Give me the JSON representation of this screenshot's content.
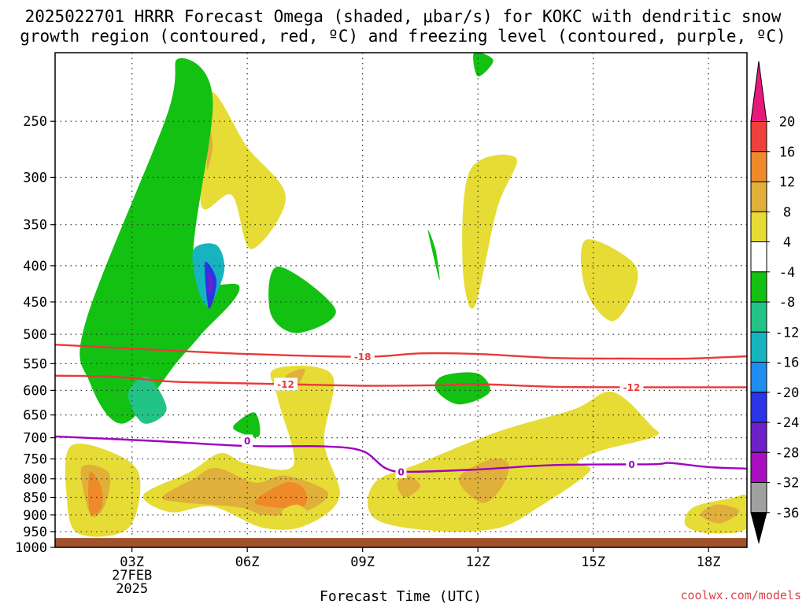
{
  "title_line1": "2025022701 HRRR Forecast Omega (shaded, μbar/s) for KOKC with dendritic snow",
  "title_line2": "growth region (contoured, red, ºC) and freezing level (contoured, purple, ºC)",
  "credit": "coolwx.com/models",
  "chart_data": {
    "type": "contour",
    "x_label": "Forecast Time (UTC)",
    "x_ticks": [
      "03Z",
      "06Z",
      "09Z",
      "12Z",
      "15Z",
      "18Z"
    ],
    "x_hours": [
      3,
      6,
      9,
      12,
      15,
      18
    ],
    "x_range_hours": [
      1,
      19
    ],
    "date_label": [
      "27FEB",
      "2025"
    ],
    "y_unit": "hPa",
    "y_ticks": [
      250,
      300,
      350,
      400,
      450,
      500,
      550,
      600,
      650,
      700,
      750,
      800,
      850,
      900,
      950,
      1000
    ],
    "y_range": [
      1000,
      200
    ],
    "colorbar": {
      "labels": [
        "20",
        "16",
        "12",
        "8",
        "4",
        "-4",
        "-8",
        "-12",
        "-16",
        "-20",
        "-24",
        "-28",
        "-32",
        "-36"
      ],
      "colors": [
        "#e8197d",
        "#f0403a",
        "#ee8a2a",
        "#e0b03a",
        "#e6dc35",
        "#ffffff",
        "#12c112",
        "#22c486",
        "#17b4c0",
        "#1f8ef0",
        "#2b34e6",
        "#6e20c8",
        "#a80fc0",
        "#a0a0a0",
        "#000000"
      ]
    },
    "contours": [
      {
        "label": "-18",
        "color": "#e83a3a",
        "points": [
          [
            1,
            517
          ],
          [
            4,
            527
          ],
          [
            6,
            533
          ],
          [
            9,
            538
          ],
          [
            10.5,
            532
          ],
          [
            12,
            533
          ],
          [
            14,
            540
          ],
          [
            16,
            541
          ],
          [
            17.5,
            541
          ],
          [
            19,
            537
          ]
        ]
      },
      {
        "label": "-12",
        "color": "#e83a3a",
        "points": [
          [
            1,
            572
          ],
          [
            2.5,
            574
          ],
          [
            4,
            583
          ],
          [
            5,
            585
          ],
          [
            7,
            588
          ],
          [
            9,
            591
          ],
          [
            11,
            590
          ],
          [
            12,
            588
          ],
          [
            14,
            593
          ],
          [
            16,
            594
          ],
          [
            19,
            594
          ]
        ]
      },
      {
        "label": "0",
        "color": "#a000c0",
        "points": [
          [
            1,
            697
          ],
          [
            3.5,
            707
          ],
          [
            6,
            719
          ],
          [
            8,
            720
          ],
          [
            9,
            731
          ],
          [
            9.6,
            773
          ],
          [
            10.2,
            782
          ],
          [
            12,
            776
          ],
          [
            14,
            765
          ],
          [
            16.5,
            763
          ],
          [
            17,
            760
          ],
          [
            18,
            770
          ],
          [
            19,
            774
          ]
        ]
      }
    ],
    "contour_label_positions": [
      [
        9,
        538
      ],
      [
        7,
        588
      ],
      [
        16,
        594
      ],
      [
        6,
        707
      ],
      [
        10,
        782
      ],
      [
        16,
        763
      ]
    ],
    "shaded_regions": [
      {
        "bin": "4 to 8",
        "color": "#e6dc35",
        "points": [
          [
            5,
            228
          ],
          [
            6,
            272
          ],
          [
            7,
            320
          ],
          [
            6.1,
            379
          ],
          [
            5.6,
            318
          ],
          [
            4.8,
            328
          ]
        ]
      },
      {
        "bin": "8 to 12",
        "color": "#e0b03a",
        "points": [
          [
            5,
            255
          ],
          [
            5.1,
            272
          ],
          [
            4.95,
            292
          ]
        ]
      },
      {
        "bin": "4 to 8",
        "color": "#e6dc35",
        "points": [
          [
            11.8,
            293
          ],
          [
            13,
            282
          ],
          [
            12.5,
            332
          ],
          [
            11.9,
            458
          ],
          [
            11.6,
            395
          ]
        ]
      },
      {
        "bin": "4 to 8",
        "color": "#e6dc35",
        "points": [
          [
            14.8,
            368
          ],
          [
            16,
            394
          ],
          [
            16.1,
            430
          ],
          [
            15.5,
            479
          ],
          [
            14.8,
            432
          ]
        ]
      },
      {
        "bin": "-4 to -8",
        "color": "#12c112",
        "points": [
          [
            3.9,
            246
          ],
          [
            4.2,
            204
          ],
          [
            5.1,
            232
          ],
          [
            4.6,
            402
          ],
          [
            5.8,
            429
          ],
          [
            4.8,
            500
          ],
          [
            4.2,
            545
          ],
          [
            2.8,
            668
          ],
          [
            1.9,
            584
          ],
          [
            1.8,
            479
          ]
        ]
      },
      {
        "bin": "-8 to -12",
        "color": "#22c486",
        "points": [
          [
            2.9,
            608
          ],
          [
            3.4,
            574
          ],
          [
            3.9,
            638
          ],
          [
            3.3,
            668
          ]
        ]
      },
      {
        "bin": "-4 to -8",
        "color": "#12c112",
        "points": [
          [
            6.8,
            401
          ],
          [
            8.3,
            462
          ],
          [
            7.3,
            498
          ],
          [
            6.6,
            466
          ]
        ]
      },
      {
        "bin": "-4 to -8",
        "color": "#12c112",
        "points": [
          [
            10.7,
            357
          ],
          [
            10.9,
            380
          ],
          [
            11.0,
            419
          ]
        ]
      },
      {
        "bin": "-4 to -8",
        "color": "#12c112",
        "points": [
          [
            11.1,
            572
          ],
          [
            12.0,
            568
          ],
          [
            12.3,
            604
          ],
          [
            11.5,
            628
          ],
          [
            10.9,
            598
          ]
        ]
      },
      {
        "bin": "-4 to -8",
        "color": "#12c112",
        "points": [
          [
            5.7,
            668
          ],
          [
            6.2,
            645
          ],
          [
            6.3,
            697
          ],
          [
            5.7,
            684
          ]
        ]
      },
      {
        "bin": "-12 to -16",
        "color": "#17b4c0",
        "points": [
          [
            4.6,
            380
          ],
          [
            5.2,
            374
          ],
          [
            5.4,
            407
          ],
          [
            5.0,
            455
          ],
          [
            4.7,
            428
          ]
        ]
      },
      {
        "bin": "-20 to -24",
        "color": "#2b34e6",
        "points": [
          [
            4.9,
            396
          ],
          [
            5.2,
            420
          ],
          [
            5.0,
            460
          ]
        ]
      },
      {
        "bin": "-24 to -28",
        "color": "#6e20c8",
        "points": [
          [
            5.0,
            407
          ],
          [
            5.1,
            424
          ],
          [
            5.0,
            440
          ]
        ]
      },
      {
        "bin": "4 to 8",
        "color": "#e6dc35",
        "points": [
          [
            1.4,
            720
          ],
          [
            2.5,
            735
          ],
          [
            3.2,
            793
          ],
          [
            2.9,
            940
          ],
          [
            1.6,
            956
          ],
          [
            1.3,
            845
          ]
        ]
      },
      {
        "bin": "8 to 12",
        "color": "#e0b03a",
        "points": [
          [
            1.7,
            769
          ],
          [
            2.4,
            785
          ],
          [
            2.3,
            870
          ],
          [
            2.0,
            906
          ],
          [
            1.8,
            860
          ]
        ]
      },
      {
        "bin": "12 to 16",
        "color": "#ee8a2a",
        "points": [
          [
            1.9,
            784
          ],
          [
            2.2,
            822
          ],
          [
            2.2,
            880
          ],
          [
            1.9,
            893
          ]
        ]
      },
      {
        "bin": "4 to 8",
        "color": "#e6dc35",
        "points": [
          [
            3.3,
            843
          ],
          [
            4.5,
            783
          ],
          [
            5.3,
            736
          ],
          [
            6.0,
            762
          ],
          [
            7.2,
            765
          ],
          [
            6.8,
            618
          ],
          [
            6.7,
            560
          ],
          [
            8.2,
            570
          ],
          [
            8.0,
            709
          ],
          [
            8.4,
            848
          ],
          [
            7.5,
            932
          ],
          [
            6.4,
            938
          ],
          [
            5.1,
            876
          ],
          [
            4.0,
            892
          ]
        ]
      },
      {
        "bin": "8 to 12",
        "color": "#e0b03a",
        "points": [
          [
            3.8,
            848
          ],
          [
            4.6,
            800
          ],
          [
            5.2,
            772
          ],
          [
            6.2,
            810
          ],
          [
            7.0,
            792
          ],
          [
            8.1,
            837
          ],
          [
            7.5,
            890
          ],
          [
            6.5,
            901
          ],
          [
            5.8,
            878
          ],
          [
            4.3,
            864
          ]
        ]
      },
      {
        "bin": "12 to 16",
        "color": "#ee8a2a",
        "points": [
          [
            6.2,
            866
          ],
          [
            7.0,
            810
          ],
          [
            7.5,
            830
          ],
          [
            7.4,
            878
          ]
        ]
      },
      {
        "bin": "8 to 12",
        "color": "#e0b03a",
        "points": [
          [
            7.0,
            573
          ],
          [
            7.5,
            560
          ],
          [
            7.2,
            600
          ]
        ]
      },
      {
        "bin": "4 to 8",
        "color": "#e6dc35",
        "points": [
          [
            9.3,
            812
          ],
          [
            10.5,
            760
          ],
          [
            12.5,
            687
          ],
          [
            14.5,
            638
          ],
          [
            15.5,
            603
          ],
          [
            16.5,
            672
          ],
          [
            16.6,
            697
          ],
          [
            15.2,
            730
          ],
          [
            14.6,
            757
          ],
          [
            14.9,
            782
          ],
          [
            13.6,
            876
          ],
          [
            12.5,
            940
          ],
          [
            10.8,
            947
          ],
          [
            9.3,
            909
          ]
        ]
      },
      {
        "bin": "8 to 12",
        "color": "#e0b03a",
        "points": [
          [
            11.5,
            800
          ],
          [
            12.3,
            752
          ],
          [
            12.8,
            762
          ],
          [
            12.6,
            825
          ],
          [
            12.1,
            865
          ]
        ]
      },
      {
        "bin": "8 to 12",
        "color": "#e0b03a",
        "points": [
          [
            9.9,
            812
          ],
          [
            10.2,
            792
          ],
          [
            10.5,
            820
          ],
          [
            10.1,
            850
          ]
        ]
      },
      {
        "bin": "4 to 8",
        "color": "#e6dc35",
        "points": [
          [
            17.6,
            878
          ],
          [
            18.6,
            852
          ],
          [
            19.0,
            848
          ],
          [
            19.0,
            940
          ],
          [
            18.0,
            955
          ],
          [
            17.4,
            930
          ]
        ]
      },
      {
        "bin": "8 to 12",
        "color": "#e0b03a",
        "points": [
          [
            17.8,
            900
          ],
          [
            18.2,
            870
          ],
          [
            18.8,
            888
          ],
          [
            18.3,
            925
          ]
        ]
      },
      {
        "bin": "4 to 8",
        "color": "#e6dc35",
        "points": [
          [
            6.9,
            890
          ],
          [
            7.3,
            870
          ],
          [
            7.6,
            900
          ],
          [
            7.2,
            920
          ]
        ]
      },
      {
        "bin": "-4 to -8",
        "color": "#12c112",
        "points": [
          [
            11.9,
            200
          ],
          [
            12.4,
            205
          ],
          [
            12.0,
            216
          ]
        ]
      }
    ],
    "terrain": {
      "color": "#a0522d",
      "below_pressure": 970
    },
    "grid": true
  }
}
